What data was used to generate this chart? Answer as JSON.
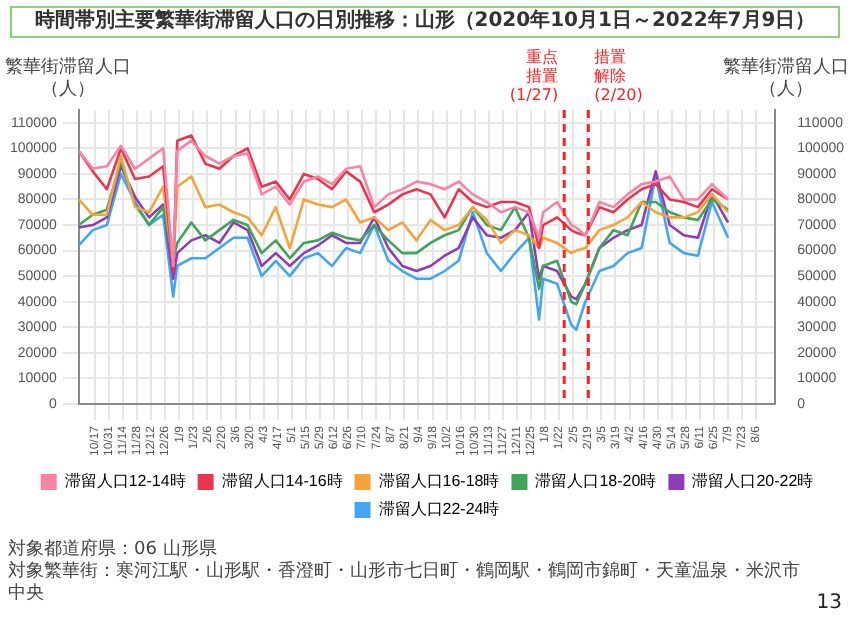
{
  "chart_data": {
    "type": "line",
    "title": "時間帯別主要繁華街滞留人口の日別推移：山形（2020年10月1日～2022年7月9日）",
    "ylabel": "繁華街滞留人口（人）",
    "y2label": "繁華街滞留人口（人）",
    "x": [
      "2020-10-01",
      "2020-10-15",
      "2020-10-29",
      "2020-11-12",
      "2020-11-26",
      "2020-12-10",
      "2020-12-24",
      "2021-01-03",
      "2021-01-07",
      "2021-01-21",
      "2021-02-04",
      "2021-02-18",
      "2021-03-04",
      "2021-03-18",
      "2021-04-01",
      "2021-04-15",
      "2021-04-29",
      "2021-05-13",
      "2021-05-27",
      "2021-06-10",
      "2021-06-24",
      "2021-07-08",
      "2021-07-22",
      "2021-08-05",
      "2021-08-19",
      "2021-09-02",
      "2021-09-16",
      "2021-09-30",
      "2021-10-14",
      "2021-10-28",
      "2021-11-11",
      "2021-11-25",
      "2021-12-09",
      "2021-12-23",
      "2022-01-02",
      "2022-01-06",
      "2022-01-20",
      "2022-02-03",
      "2022-02-08",
      "2022-02-17",
      "2022-03-03",
      "2022-03-17",
      "2022-03-31",
      "2022-04-14",
      "2022-04-28",
      "2022-05-12",
      "2022-05-26",
      "2022-06-09",
      "2022-06-23",
      "2022-07-09"
    ],
    "series": [
      {
        "name": "滞留人口12-14時",
        "color": "#f783a5",
        "values": [
          99000,
          92000,
          93000,
          101000,
          92000,
          96000,
          100000,
          54000,
          99000,
          103000,
          97000,
          94000,
          97000,
          98000,
          82000,
          85000,
          78000,
          87000,
          89000,
          86000,
          92000,
          93000,
          77000,
          82000,
          84000,
          87000,
          86000,
          84000,
          87000,
          82000,
          79000,
          75000,
          77000,
          75000,
          65000,
          75000,
          79000,
          70000,
          69000,
          66000,
          79000,
          77000,
          82000,
          86000,
          87000,
          89000,
          80000,
          80000,
          86000,
          80000
        ]
      },
      {
        "name": "滞留人口14-16時",
        "color": "#e8364f",
        "values": [
          99000,
          91000,
          84000,
          100000,
          88000,
          89000,
          93000,
          52000,
          103000,
          105000,
          94000,
          92000,
          97000,
          100000,
          85000,
          87000,
          80000,
          90000,
          88000,
          84000,
          91000,
          87000,
          75000,
          78000,
          82000,
          84000,
          82000,
          73000,
          84000,
          79000,
          77000,
          79000,
          79000,
          77000,
          61000,
          70000,
          73000,
          68000,
          67000,
          66000,
          77000,
          75000,
          80000,
          84000,
          86000,
          80000,
          79000,
          77000,
          84000,
          80000
        ]
      },
      {
        "name": "滞留人口16-18時",
        "color": "#f5a33a",
        "values": [
          80000,
          74000,
          74000,
          97000,
          77000,
          75000,
          85000,
          54000,
          85000,
          89000,
          77000,
          78000,
          75000,
          73000,
          66000,
          77000,
          61000,
          80000,
          78000,
          77000,
          80000,
          71000,
          73000,
          68000,
          71000,
          64000,
          72000,
          68000,
          70000,
          77000,
          72000,
          63000,
          68000,
          66000,
          61000,
          65000,
          63000,
          59000,
          60000,
          61000,
          68000,
          70000,
          73000,
          79000,
          75000,
          73000,
          73000,
          75000,
          82000,
          75000
        ]
      },
      {
        "name": "滞留人口18-20時",
        "color": "#3ea55b",
        "values": [
          70000,
          74000,
          76000,
          95000,
          78000,
          70000,
          77000,
          56000,
          63000,
          71000,
          64000,
          68000,
          72000,
          70000,
          59000,
          64000,
          57000,
          63000,
          64000,
          67000,
          65000,
          64000,
          70000,
          64000,
          59000,
          59000,
          63000,
          66000,
          68000,
          77000,
          70000,
          68000,
          77000,
          65000,
          45000,
          54000,
          56000,
          40000,
          39000,
          47000,
          61000,
          68000,
          66000,
          79000,
          79000,
          75000,
          73000,
          72000,
          80000,
          76000
        ]
      },
      {
        "name": "滞留人口20-22時",
        "color": "#8e3cb8",
        "values": [
          69000,
          70000,
          73000,
          93000,
          81000,
          73000,
          78000,
          49000,
          59000,
          64000,
          66000,
          63000,
          71000,
          68000,
          54000,
          59000,
          54000,
          59000,
          62000,
          66000,
          63000,
          63000,
          73000,
          61000,
          54000,
          52000,
          54000,
          58000,
          61000,
          73000,
          66000,
          65000,
          68000,
          75000,
          49000,
          54000,
          52000,
          42000,
          41000,
          47000,
          61000,
          65000,
          68000,
          70000,
          91000,
          70000,
          66000,
          65000,
          82000,
          71000
        ]
      },
      {
        "name": "滞留人口22-24時",
        "color": "#43a6f2",
        "values": [
          62000,
          68000,
          70000,
          90000,
          79000,
          70000,
          74000,
          42000,
          54000,
          57000,
          57000,
          61000,
          65000,
          65000,
          50000,
          56000,
          50000,
          57000,
          59000,
          54000,
          61000,
          59000,
          70000,
          56000,
          52000,
          49000,
          49000,
          52000,
          56000,
          75000,
          59000,
          52000,
          59000,
          65000,
          33000,
          49000,
          47000,
          31000,
          29000,
          40000,
          52000,
          54000,
          59000,
          61000,
          89000,
          63000,
          59000,
          58000,
          79000,
          65000
        ]
      }
    ],
    "xlim": [
      "2020-10-01",
      "2022-08-25"
    ],
    "xticks": [
      {
        "value": "2020-10-17",
        "label": "10/17"
      },
      {
        "value": "2020-10-31",
        "label": "10/31"
      },
      {
        "value": "2020-11-14",
        "label": "11/14"
      },
      {
        "value": "2020-11-28",
        "label": "11/28"
      },
      {
        "value": "2020-12-12",
        "label": "12/12"
      },
      {
        "value": "2020-12-26",
        "label": "12/26"
      },
      {
        "value": "2021-01-09",
        "label": "1/9"
      },
      {
        "value": "2021-01-23",
        "label": "1/23"
      },
      {
        "value": "2021-02-06",
        "label": "2/6"
      },
      {
        "value": "2021-02-20",
        "label": "2/20"
      },
      {
        "value": "2021-03-06",
        "label": "3/6"
      },
      {
        "value": "2021-03-20",
        "label": "3/20"
      },
      {
        "value": "2021-04-03",
        "label": "4/3"
      },
      {
        "value": "2021-04-17",
        "label": "4/17"
      },
      {
        "value": "2021-05-01",
        "label": "5/1"
      },
      {
        "value": "2021-05-15",
        "label": "5/15"
      },
      {
        "value": "2021-05-29",
        "label": "5/29"
      },
      {
        "value": "2021-06-12",
        "label": "6/12"
      },
      {
        "value": "2021-06-26",
        "label": "6/26"
      },
      {
        "value": "2021-07-10",
        "label": "7/10"
      },
      {
        "value": "2021-07-24",
        "label": "7/24"
      },
      {
        "value": "2021-08-07",
        "label": "8/7"
      },
      {
        "value": "2021-08-21",
        "label": "8/21"
      },
      {
        "value": "2021-09-04",
        "label": "9/4"
      },
      {
        "value": "2021-09-18",
        "label": "9/18"
      },
      {
        "value": "2021-10-02",
        "label": "10/2"
      },
      {
        "value": "2021-10-16",
        "label": "10/16"
      },
      {
        "value": "2021-10-30",
        "label": "10/30"
      },
      {
        "value": "2021-11-13",
        "label": "11/13"
      },
      {
        "value": "2021-11-27",
        "label": "11/27"
      },
      {
        "value": "2021-12-11",
        "label": "12/11"
      },
      {
        "value": "2021-12-25",
        "label": "12/25"
      },
      {
        "value": "2022-01-08",
        "label": "1/8"
      },
      {
        "value": "2022-01-22",
        "label": "1/22"
      },
      {
        "value": "2022-02-05",
        "label": "2/5"
      },
      {
        "value": "2022-02-19",
        "label": "2/19"
      },
      {
        "value": "2022-03-05",
        "label": "3/5"
      },
      {
        "value": "2022-03-19",
        "label": "3/19"
      },
      {
        "value": "2022-04-02",
        "label": "4/2"
      },
      {
        "value": "2022-04-16",
        "label": "4/16"
      },
      {
        "value": "2022-04-30",
        "label": "4/30"
      },
      {
        "value": "2022-05-14",
        "label": "5/14"
      },
      {
        "value": "2022-05-28",
        "label": "5/28"
      },
      {
        "value": "2022-06-11",
        "label": "6/11"
      },
      {
        "value": "2022-06-25",
        "label": "6/25"
      },
      {
        "value": "2022-07-09",
        "label": "7/9"
      },
      {
        "value": "2022-07-23",
        "label": "7/23"
      },
      {
        "value": "2022-08-06",
        "label": "8/6"
      }
    ],
    "ylim": [
      0,
      115000
    ],
    "yticks": [
      0,
      10000,
      20000,
      30000,
      40000,
      50000,
      60000,
      70000,
      80000,
      90000,
      100000,
      110000
    ],
    "y2lim": [
      0,
      115000
    ],
    "y2ticks": [
      0,
      10000,
      20000,
      30000,
      40000,
      50000,
      60000,
      70000,
      80000,
      90000,
      100000,
      110000
    ],
    "ref_lines": [
      {
        "axis": "x",
        "value": "2022-01-27",
        "label": "重点措置(1/27)",
        "color": "#ff2020",
        "line_style": "dashed"
      },
      {
        "axis": "x",
        "value": "2022-02-20",
        "label": "措置解除(2/20)",
        "color": "#ff2020",
        "line_style": "dashed"
      }
    ],
    "grid": true,
    "legend": "bottom",
    "marker": "none",
    "line_style": "solid",
    "annotations": [
      "対象都道府県：06 山形県",
      "対象繁華街：寒河江駅・山形駅・香澄町・山形市七日町・鶴岡駅・鶴岡市錦町・天童温泉・米沢市中央",
      "13"
    ]
  }
}
